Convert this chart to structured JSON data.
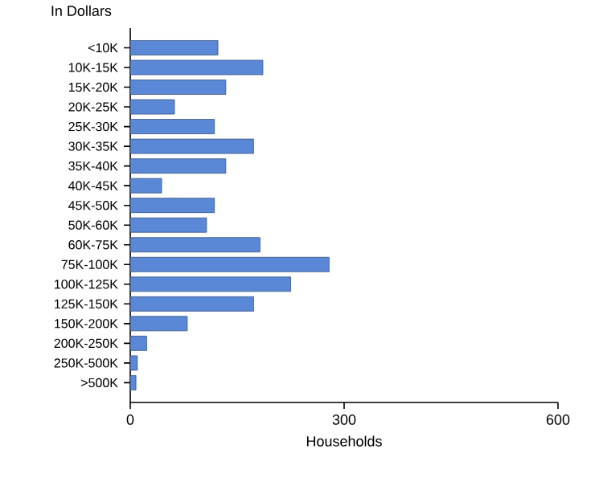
{
  "chart_data": {
    "type": "bar",
    "orientation": "horizontal",
    "ylabel": "In Dollars",
    "xlabel": "Households",
    "categories": [
      "<10K",
      "10K-15K",
      "15K-20K",
      "20K-25K",
      "25K-30K",
      "30K-35K",
      "35K-40K",
      "40K-45K",
      "45K-50K",
      "50K-60K",
      "60K-75K",
      "75K-100K",
      "100K-125K",
      "125K-150K",
      "150K-200K",
      "200K-250K",
      "250K-500K",
      ">500K"
    ],
    "values": [
      123,
      186,
      134,
      62,
      118,
      173,
      134,
      44,
      118,
      107,
      182,
      279,
      225,
      173,
      80,
      23,
      10,
      8
    ],
    "color": "#5b88d6",
    "xlim": [
      0,
      600
    ],
    "xticks": [
      0,
      300,
      600
    ],
    "grid": false
  }
}
